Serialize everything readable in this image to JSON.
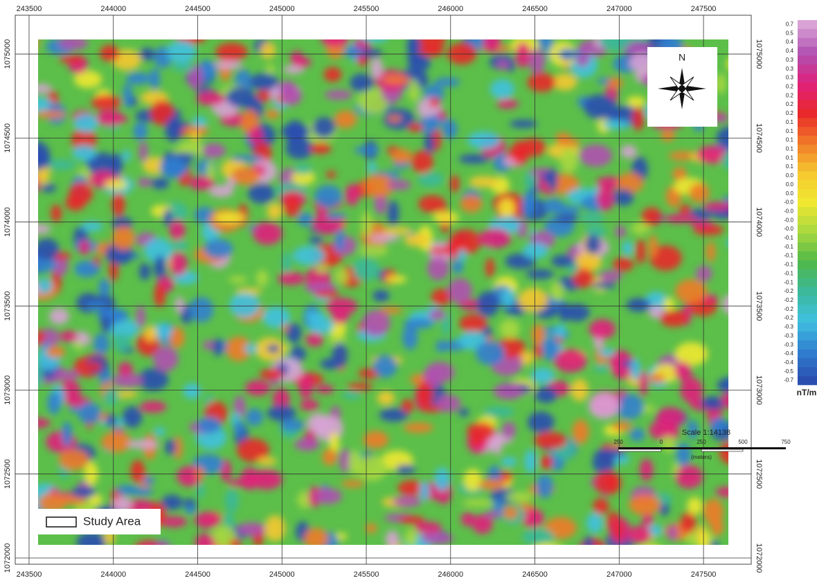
{
  "map": {
    "xlim": [
      243418,
      247783
    ],
    "ylim": [
      1071963,
      1075231
    ],
    "x_ticks": [
      243500,
      244000,
      244500,
      245000,
      245500,
      246000,
      246500,
      247000,
      247500
    ],
    "y_ticks": [
      1072000,
      1072500,
      1073000,
      1073500,
      1074000,
      1074500,
      1075000
    ],
    "north_label": "N",
    "scale": {
      "title": "Scale 1:14138",
      "ticks": [
        "250",
        "0",
        "250",
        "500",
        "750"
      ],
      "unit": "(meters)"
    },
    "legend": {
      "label": "Study Area"
    },
    "colorbar": {
      "labels": [
        "0.7",
        "0.5",
        "0.4",
        "0.4",
        "0.3",
        "0.3",
        "0.3",
        "0.2",
        "0.2",
        "0.2",
        "0.2",
        "0.1",
        "0.1",
        "0.1",
        "0.1",
        "0.1",
        "0.1",
        "0.0",
        "0.0",
        "0.0",
        "-0.0",
        "-0.0",
        "-0.0",
        "-0.0",
        "-0.1",
        "-0.1",
        "-0.1",
        "-0.1",
        "-0.1",
        "-0.1",
        "-0.2",
        "-0.2",
        "-0.2",
        "-0.2",
        "-0.3",
        "-0.3",
        "-0.3",
        "-0.4",
        "-0.4",
        "-0.5",
        "-0.7"
      ],
      "colors": [
        "#d9a3d6",
        "#b04fb0",
        "#e0207a",
        "#e8282a",
        "#f07a28",
        "#f5c830",
        "#f0e830",
        "#a8d840",
        "#4fb848",
        "#3cb89a",
        "#40c0e0",
        "#3080d0",
        "#2a4eb0"
      ],
      "unit": "nT/m"
    }
  }
}
